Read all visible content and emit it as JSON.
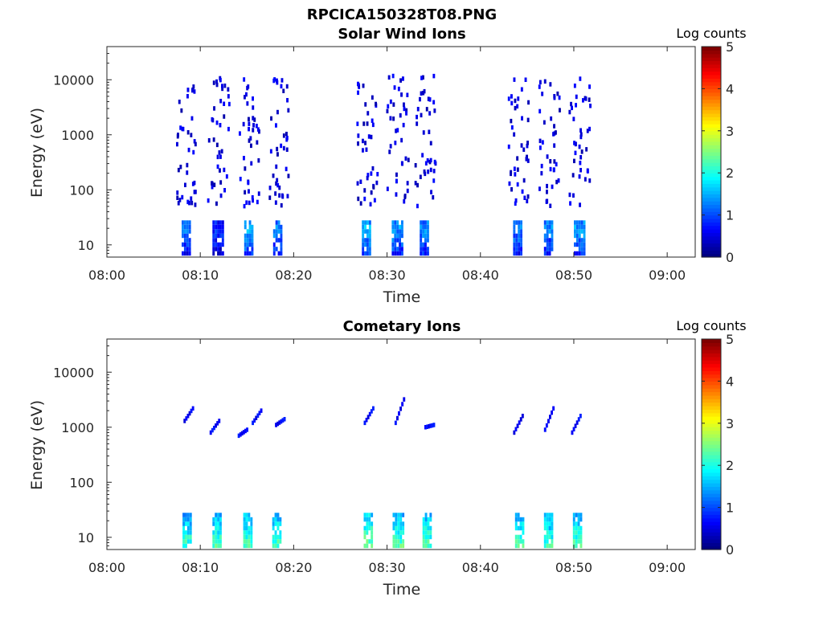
{
  "figure": {
    "title": "RPCICA150328T08.PNG"
  },
  "chart_data": [
    {
      "type": "heatmap",
      "title": "Solar Wind Ions",
      "xlabel": "Time",
      "ylabel": "Energy (eV)",
      "x_ticks": [
        "08:00",
        "08:10",
        "08:20",
        "08:30",
        "08:40",
        "08:50",
        "09:00"
      ],
      "x_range": [
        "08:00",
        "09:03"
      ],
      "y_scale": "log",
      "y_ticks": [
        "10",
        "100",
        "1000",
        "10000"
      ],
      "y_range": [
        6,
        40000
      ],
      "colorbar": {
        "label": "Log counts",
        "ticks": [
          "0",
          "1",
          "2",
          "3",
          "4",
          "5"
        ],
        "range": [
          0,
          5
        ],
        "colormap": "jet"
      },
      "bursts": [
        {
          "t_min": 8.0,
          "width_min": 1.0,
          "base_log": 1.3,
          "dense_to_eV": 30,
          "level": 1.2
        },
        {
          "t_min": 11.3,
          "width_min": 1.1,
          "base_log": 1.2,
          "dense_to_eV": 30,
          "level": 0.9
        },
        {
          "t_min": 14.7,
          "width_min": 1.0,
          "base_log": 1.3,
          "dense_to_eV": 30,
          "level": 1.5
        },
        {
          "t_min": 17.8,
          "width_min": 1.0,
          "base_log": 1.3,
          "dense_to_eV": 30,
          "level": 1.3
        },
        {
          "t_min": 27.3,
          "width_min": 1.0,
          "base_log": 1.3,
          "dense_to_eV": 30,
          "level": 1.5
        },
        {
          "t_min": 30.5,
          "width_min": 1.1,
          "base_log": 1.3,
          "dense_to_eV": 30,
          "level": 1.4
        },
        {
          "t_min": 33.5,
          "width_min": 1.0,
          "base_log": 1.3,
          "dense_to_eV": 30,
          "level": 1.3
        },
        {
          "t_min": 43.5,
          "width_min": 1.0,
          "base_log": 1.3,
          "dense_to_eV": 30,
          "level": 1.3
        },
        {
          "t_min": 46.8,
          "width_min": 1.0,
          "base_log": 1.3,
          "dense_to_eV": 30,
          "level": 1.3
        },
        {
          "t_min": 50.0,
          "width_min": 1.1,
          "base_log": 1.3,
          "dense_to_eV": 30,
          "level": 1.4
        }
      ],
      "scatter_eV_range": [
        50,
        12000
      ]
    },
    {
      "type": "heatmap",
      "title": "Cometary Ions",
      "xlabel": "Time",
      "ylabel": "Energy (eV)",
      "x_ticks": [
        "08:00",
        "08:10",
        "08:20",
        "08:30",
        "08:40",
        "08:50",
        "09:00"
      ],
      "x_range": [
        "08:00",
        "09:03"
      ],
      "y_scale": "log",
      "y_ticks": [
        "10",
        "100",
        "1000",
        "10000"
      ],
      "y_range": [
        6,
        40000
      ],
      "colorbar": {
        "label": "Log counts",
        "ticks": [
          "0",
          "1",
          "2",
          "3",
          "4",
          "5"
        ],
        "range": [
          0,
          5
        ],
        "colormap": "jet"
      },
      "bursts": [
        {
          "t_min": 8.1,
          "width_min": 0.9,
          "base_log": 0.8,
          "dense_to_eV": 30,
          "level": 2.2
        },
        {
          "t_min": 11.3,
          "width_min": 1.0,
          "base_log": 0.8,
          "dense_to_eV": 30,
          "level": 2.3
        },
        {
          "t_min": 14.6,
          "width_min": 1.0,
          "base_log": 0.8,
          "dense_to_eV": 30,
          "level": 2.3
        },
        {
          "t_min": 17.7,
          "width_min": 1.0,
          "base_log": 0.8,
          "dense_to_eV": 30,
          "level": 2.3
        },
        {
          "t_min": 27.5,
          "width_min": 1.0,
          "base_log": 0.8,
          "dense_to_eV": 30,
          "level": 2.5
        },
        {
          "t_min": 30.6,
          "width_min": 1.1,
          "base_log": 0.8,
          "dense_to_eV": 30,
          "level": 2.3
        },
        {
          "t_min": 33.8,
          "width_min": 1.0,
          "base_log": 0.8,
          "dense_to_eV": 30,
          "level": 2.3
        },
        {
          "t_min": 43.7,
          "width_min": 1.0,
          "base_log": 0.8,
          "dense_to_eV": 30,
          "level": 2.3
        },
        {
          "t_min": 46.8,
          "width_min": 1.0,
          "base_log": 0.8,
          "dense_to_eV": 30,
          "level": 2.2
        },
        {
          "t_min": 49.9,
          "width_min": 1.0,
          "base_log": 0.8,
          "dense_to_eV": 30,
          "level": 2.3
        }
      ],
      "lines_eV": [
        {
          "t_min": 8.2,
          "e_from": 1300,
          "e_to": 2200
        },
        {
          "t_min": 11.0,
          "e_from": 800,
          "e_to": 1300
        },
        {
          "t_min": 14.0,
          "e_from": 700,
          "e_to": 900
        },
        {
          "t_min": 15.5,
          "e_from": 1200,
          "e_to": 2000
        },
        {
          "t_min": 18.0,
          "e_from": 1100,
          "e_to": 1400
        },
        {
          "t_min": 27.5,
          "e_from": 1200,
          "e_to": 2200
        },
        {
          "t_min": 30.8,
          "e_from": 1200,
          "e_to": 3200
        },
        {
          "t_min": 34.0,
          "e_from": 1000,
          "e_to": 1100
        },
        {
          "t_min": 43.5,
          "e_from": 800,
          "e_to": 1600
        },
        {
          "t_min": 46.8,
          "e_from": 900,
          "e_to": 2200
        },
        {
          "t_min": 49.7,
          "e_from": 800,
          "e_to": 1600
        }
      ]
    }
  ]
}
